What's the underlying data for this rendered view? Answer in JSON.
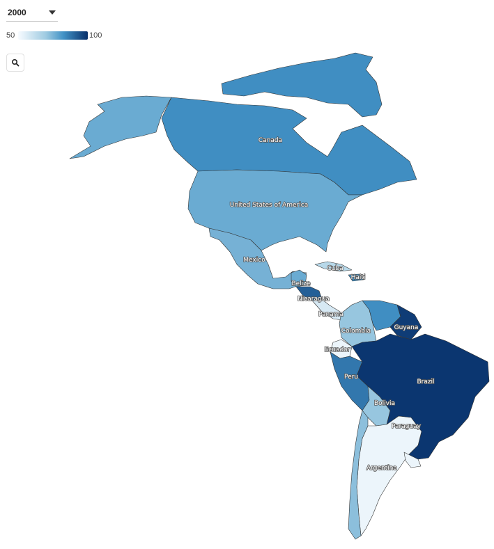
{
  "controls": {
    "year_value": "2000",
    "year_caret_icon": "chevron-down-icon",
    "search_icon": "search-icon"
  },
  "legend": {
    "min_label": "50",
    "max_label": "100",
    "scale_min": 50,
    "scale_max": 100,
    "colors": [
      "#f7fbff",
      "#9ecae1",
      "#4292c6",
      "#08306b"
    ]
  },
  "map": {
    "type": "choropleth",
    "countries": [
      {
        "name": "Canada",
        "label": "Canada",
        "value": 84
      },
      {
        "name": "United States of America",
        "label": "United States of America",
        "value": 76
      },
      {
        "name": "Mexico",
        "label": "Mexico",
        "value": 74
      },
      {
        "name": "Cuba",
        "label": "Cuba",
        "value": 62
      },
      {
        "name": "Haiti",
        "label": "Haiti",
        "value": 84
      },
      {
        "name": "Belize",
        "label": "Belize",
        "value": 76
      },
      {
        "name": "Nicaragua",
        "label": "Nicaragua",
        "value": 92
      },
      {
        "name": "Panama",
        "label": "Panama",
        "value": 56
      },
      {
        "name": "Colombia",
        "label": "Colombia",
        "value": 68
      },
      {
        "name": "Guyana",
        "label": "Guyana",
        "value": 98
      },
      {
        "name": "Ecuador",
        "label": "Ecuador",
        "value": 52
      },
      {
        "name": "Peru",
        "label": "Peru",
        "value": 88
      },
      {
        "name": "Brazil",
        "label": "Brazil",
        "value": 99
      },
      {
        "name": "Bolivia",
        "label": "Bolivia",
        "value": 68
      },
      {
        "name": "Paraguay",
        "label": "Paraguay",
        "value": 52
      },
      {
        "name": "Argentina",
        "label": "Argentina",
        "value": 52
      },
      {
        "name": "Chile",
        "label": "",
        "value": 70
      },
      {
        "name": "Venezuela",
        "label": "",
        "value": 84
      },
      {
        "name": "Greenland Islands",
        "label": "",
        "value": 84
      }
    ]
  }
}
